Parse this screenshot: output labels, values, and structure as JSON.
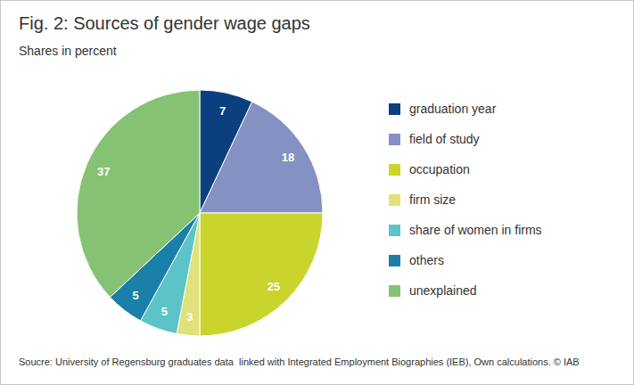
{
  "chart_data": {
    "type": "pie",
    "title": "Fig. 2: Sources of gender wage gaps",
    "subtitle": "Shares in percent",
    "categories": [
      "graduation year",
      "field of study",
      "occupation",
      "firm size",
      "share of women in firms",
      "others",
      "unexplained"
    ],
    "values": [
      7,
      18,
      25,
      3,
      5,
      5,
      37
    ],
    "colors": [
      "#0b3f7d",
      "#8591c2",
      "#c9d52c",
      "#dfe27a",
      "#5cc3c8",
      "#1a7fa9",
      "#86c273"
    ],
    "data_labels": true,
    "legend": "right",
    "source": "Soucre: University of Regensburg graduates data  linked with Integrated Employment Biographies (IEB), Own calculations. © IAB"
  }
}
